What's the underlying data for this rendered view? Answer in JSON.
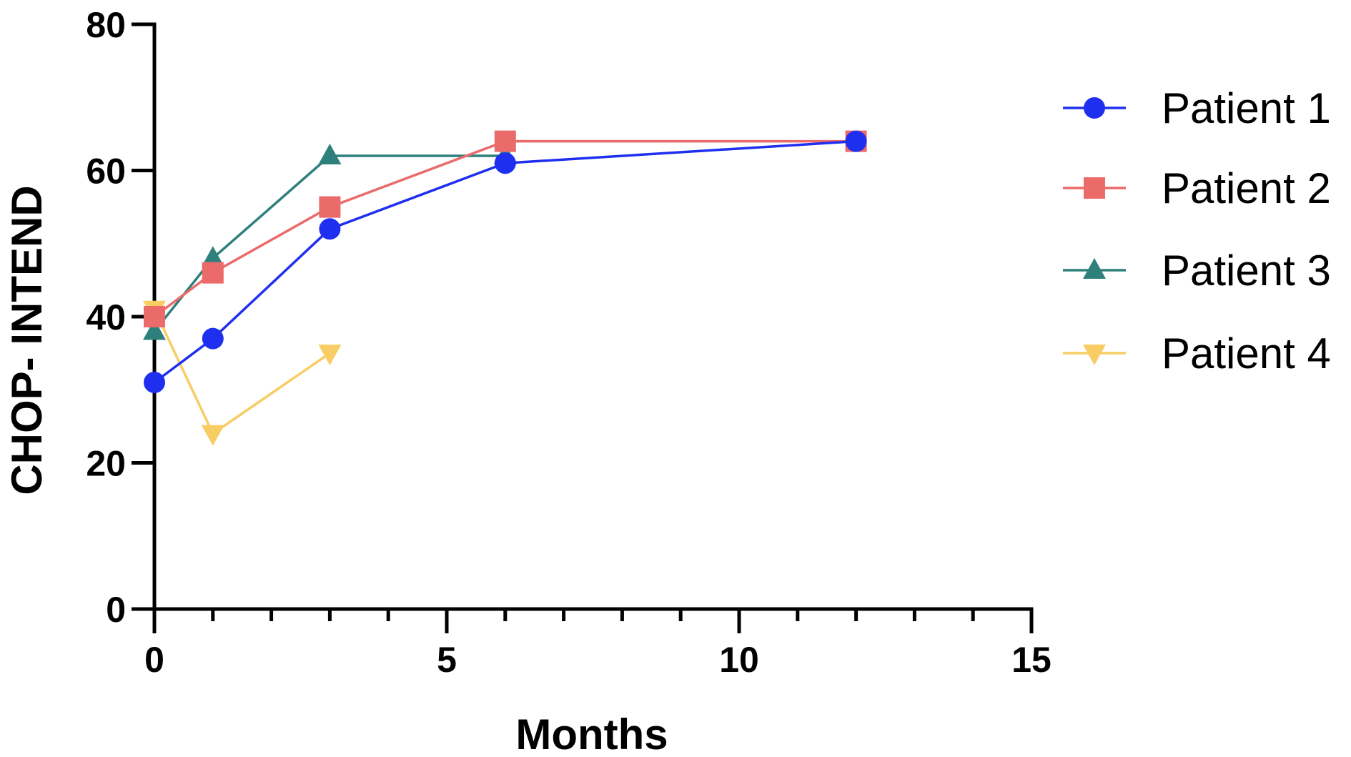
{
  "chart_data": {
    "type": "line",
    "xlabel": "Months",
    "ylabel": "CHOP- INTEND",
    "xlim": [
      0,
      15
    ],
    "ylim": [
      0,
      80
    ],
    "xticks": [
      0,
      5,
      10,
      15
    ],
    "yticks": [
      0,
      20,
      40,
      60,
      80
    ],
    "x_minor_step": 1,
    "grid": false,
    "legend_position": "right",
    "series": [
      {
        "name": "Patient 1",
        "color": "#1f2ff0",
        "marker": "circle",
        "points": [
          [
            0,
            31
          ],
          [
            1,
            37
          ],
          [
            3,
            52
          ],
          [
            6,
            61
          ],
          [
            12,
            64
          ]
        ]
      },
      {
        "name": "Patient 2",
        "color": "#eb6a6a",
        "marker": "square",
        "points": [
          [
            0,
            40
          ],
          [
            1,
            46
          ],
          [
            3,
            55
          ],
          [
            6,
            64
          ],
          [
            12,
            64
          ]
        ]
      },
      {
        "name": "Patient 3",
        "color": "#2e807c",
        "marker": "triangle-up",
        "points": [
          [
            0,
            38
          ],
          [
            1,
            48
          ],
          [
            3,
            62
          ],
          [
            6,
            62
          ]
        ]
      },
      {
        "name": "Patient 4",
        "color": "#f7cd64",
        "marker": "triangle-down",
        "points": [
          [
            0,
            41
          ],
          [
            1,
            24
          ],
          [
            3,
            35
          ]
        ]
      }
    ]
  }
}
